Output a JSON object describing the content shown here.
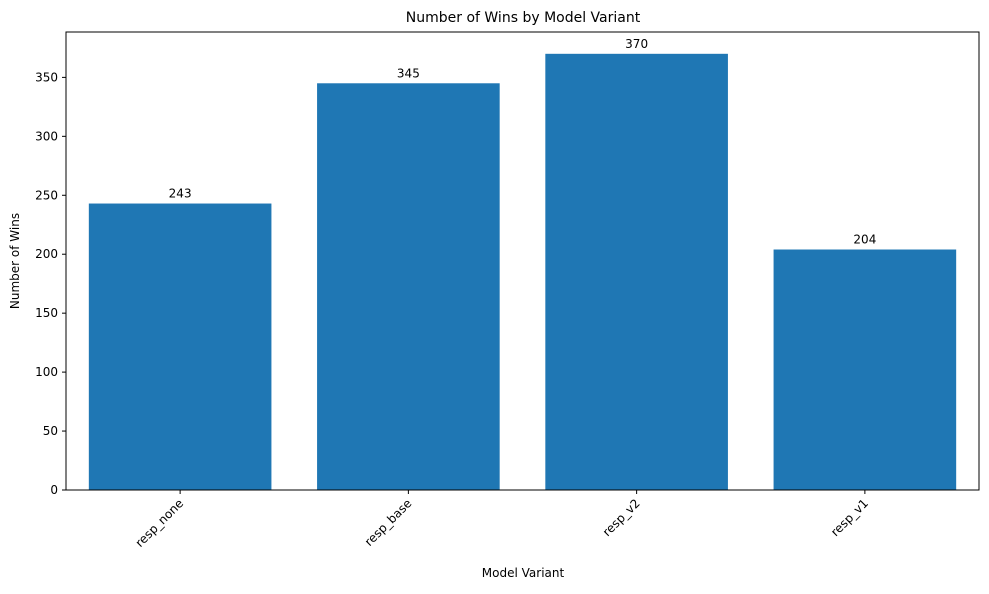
{
  "chart_data": {
    "type": "bar",
    "title": "Number of Wins by Model Variant",
    "xlabel": "Model Variant",
    "ylabel": "Number of Wins",
    "categories": [
      "resp_none",
      "resp_base",
      "resp_v2",
      "resp_v1"
    ],
    "values": [
      243,
      345,
      370,
      204
    ],
    "data_labels": [
      "243",
      "345",
      "370",
      "204"
    ],
    "ylim": [
      0,
      388.5
    ],
    "yticks": [
      0,
      50,
      100,
      150,
      200,
      250,
      300,
      350
    ],
    "ytick_labels": [
      "0",
      "50",
      "100",
      "150",
      "200",
      "250",
      "300",
      "350"
    ],
    "bar_color": "#1f77b4",
    "grid": false,
    "legend": false,
    "xtick_rotation": "45 degrees"
  }
}
